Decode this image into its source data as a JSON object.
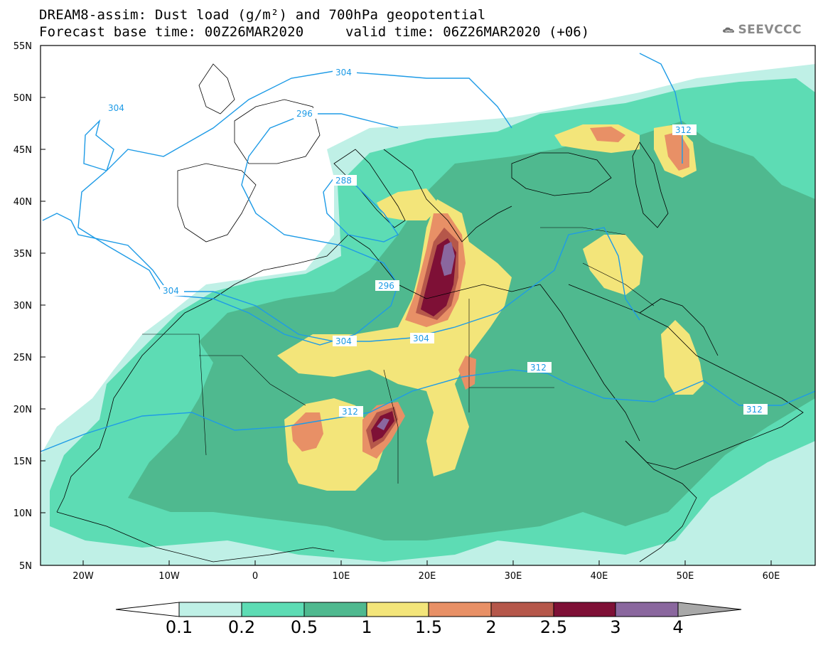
{
  "title": {
    "line1": "DREAM8-assim: Dust load (g/m²) and 700hPa geopotential",
    "line2": "Forecast base time: 00Z26MAR2020",
    "valid": "valid time: 06Z26MAR2020 (+06)"
  },
  "logo": {
    "text": "SEEVCCC",
    "icon": "cloud-logo-icon"
  },
  "axes": {
    "lat_labels": [
      "55N",
      "50N",
      "45N",
      "40N",
      "35N",
      "30N",
      "25N",
      "20N",
      "15N",
      "10N",
      "5N"
    ],
    "lon_labels": [
      "20W",
      "10W",
      "0",
      "10E",
      "20E",
      "30E",
      "40E",
      "50E",
      "60E"
    ]
  },
  "geopotential_labels": [
    "304",
    "296",
    "304",
    "288",
    "304",
    "296",
    "304",
    "304",
    "312",
    "312",
    "312",
    "312"
  ],
  "colorbar": {
    "levels": [
      "0.1",
      "0.2",
      "0.5",
      "1",
      "1.5",
      "2",
      "2.5",
      "3",
      "4"
    ],
    "colors": [
      "#bff0e6",
      "#5ddcb4",
      "#4fb98f",
      "#f3e57a",
      "#e89066",
      "#b5574a",
      "#7e1036",
      "#8a679e"
    ],
    "under_color": "#ffffff",
    "over_color": "#a8a8a8"
  }
}
